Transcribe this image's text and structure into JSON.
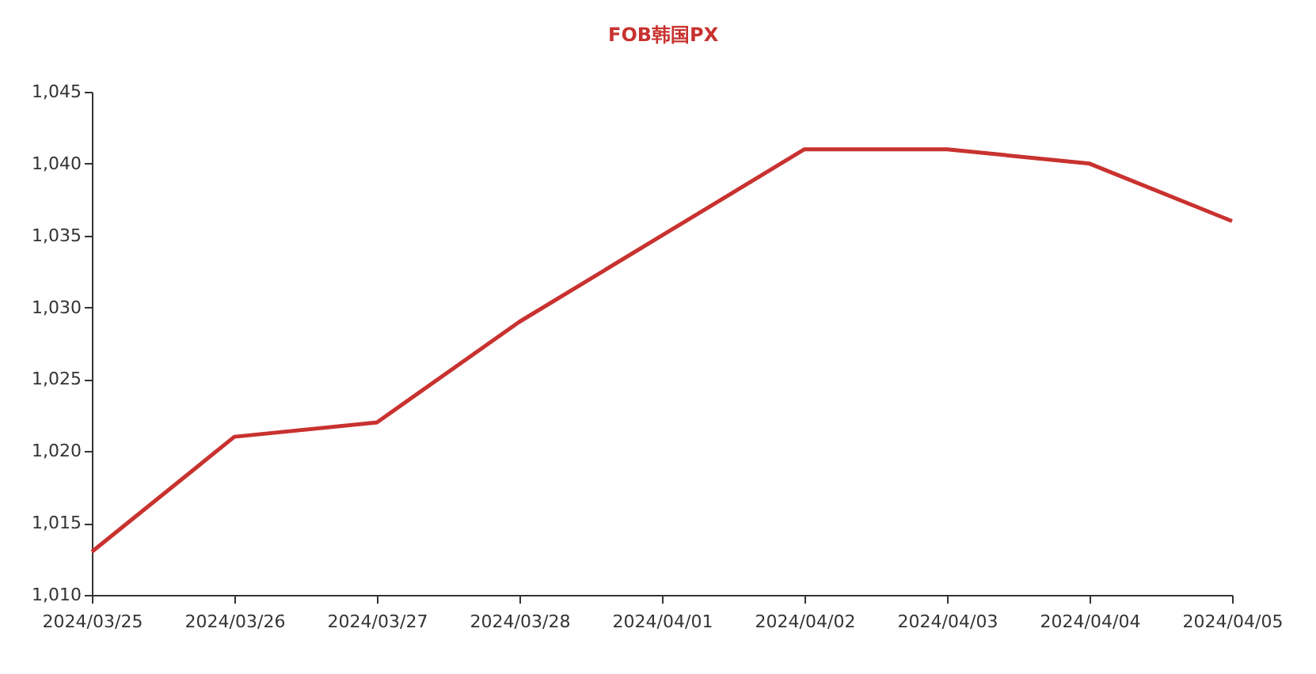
{
  "chart_data": {
    "type": "line",
    "categories": [
      "2024/03/25",
      "2024/03/26",
      "2024/03/27",
      "2024/03/28",
      "2024/04/01",
      "2024/04/02",
      "2024/04/03",
      "2024/04/04",
      "2024/04/05"
    ],
    "series": [
      {
        "name": "FOB韩国PX",
        "color": "#c8322f",
        "values": [
          1013,
          1021,
          1022,
          1029,
          1035,
          1041,
          1041,
          1040,
          1036
        ]
      }
    ],
    "ylim": [
      1010,
      1045
    ],
    "yticks": [
      {
        "value": 1010,
        "label": "1,010"
      },
      {
        "value": 1015,
        "label": "1,015"
      },
      {
        "value": 1020,
        "label": "1,020"
      },
      {
        "value": 1025,
        "label": "1,025"
      },
      {
        "value": 1030,
        "label": "1,030"
      },
      {
        "value": 1035,
        "label": "1,035"
      },
      {
        "value": 1040,
        "label": "1,040"
      },
      {
        "value": 1045,
        "label": "1,045"
      }
    ],
    "grid": false,
    "legend": "top",
    "marker": "none",
    "line_style": "solid"
  }
}
